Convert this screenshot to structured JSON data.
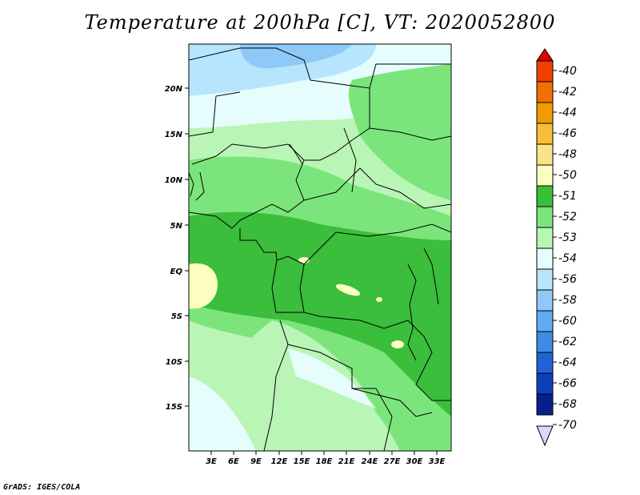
{
  "title": "Temperature at 200hPa [C], VT: 2020052800",
  "credit": "GrADS: IGES/COLA",
  "map": {
    "lat_labels": [
      "20N",
      "15N",
      "10N",
      "5N",
      "EQ",
      "5S",
      "10S",
      "15S"
    ],
    "lon_labels": [
      "3E",
      "6E",
      "9E",
      "12E",
      "15E",
      "18E",
      "21E",
      "24E",
      "27E",
      "30E",
      "33E"
    ]
  },
  "colorbar": {
    "labels": [
      "-40",
      "-42",
      "-44",
      "-46",
      "-48",
      "-50",
      "-51",
      "-52",
      "-53",
      "-54",
      "-56",
      "-58",
      "-60",
      "-62",
      "-64",
      "-66",
      "-68",
      "-70"
    ],
    "colors": [
      "#e00000",
      "#f04000",
      "#f07000",
      "#f39b00",
      "#f7be3a",
      "#fbe38a",
      "#fdfdbf",
      "#3bbe3b",
      "#7be57b",
      "#b9f5b5",
      "#e5fdfd",
      "#b6e5fd",
      "#8ec9f8",
      "#62aaf2",
      "#3f8be6",
      "#1f63d7",
      "#0f3fb8",
      "#062090",
      "#0a0a60"
    ],
    "top_color": "#e00000",
    "bottom_color": "#d8d8f8"
  }
}
